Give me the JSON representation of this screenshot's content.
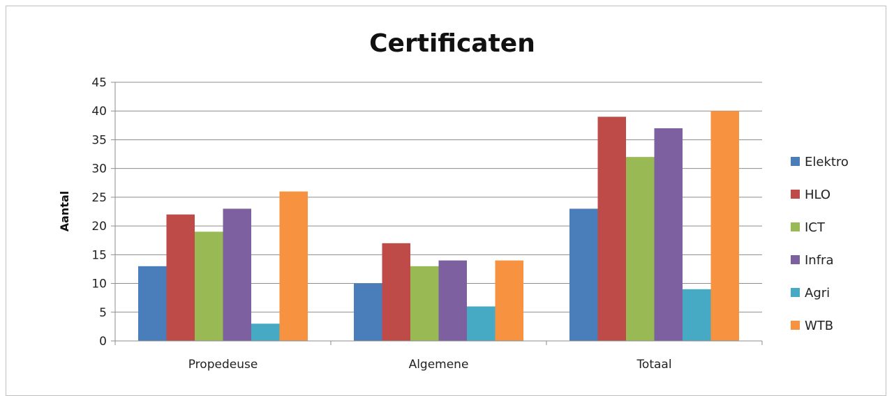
{
  "chart_data": {
    "type": "bar",
    "title": "Certificaten",
    "ylabel": "Aantal",
    "xlabel": "",
    "ylim": [
      0,
      45
    ],
    "yticks": [
      0,
      5,
      10,
      15,
      20,
      25,
      30,
      35,
      40,
      45
    ],
    "grid": true,
    "legend": "right",
    "categories": [
      "Propedeuse",
      "Algemene",
      "Totaal"
    ],
    "series": [
      {
        "name": "Elektro",
        "color": "#4a7ebb",
        "values": [
          13,
          10,
          23
        ]
      },
      {
        "name": "HLO",
        "color": "#be4b48",
        "values": [
          22,
          17,
          39
        ]
      },
      {
        "name": "ICT",
        "color": "#98b954",
        "values": [
          19,
          13,
          32
        ]
      },
      {
        "name": "Infra",
        "color": "#7d60a0",
        "values": [
          23,
          14,
          37
        ]
      },
      {
        "name": "Agri",
        "color": "#46aac5",
        "values": [
          3,
          6,
          9
        ]
      },
      {
        "name": "WTB",
        "color": "#f69240",
        "values": [
          26,
          14,
          40
        ]
      }
    ]
  }
}
